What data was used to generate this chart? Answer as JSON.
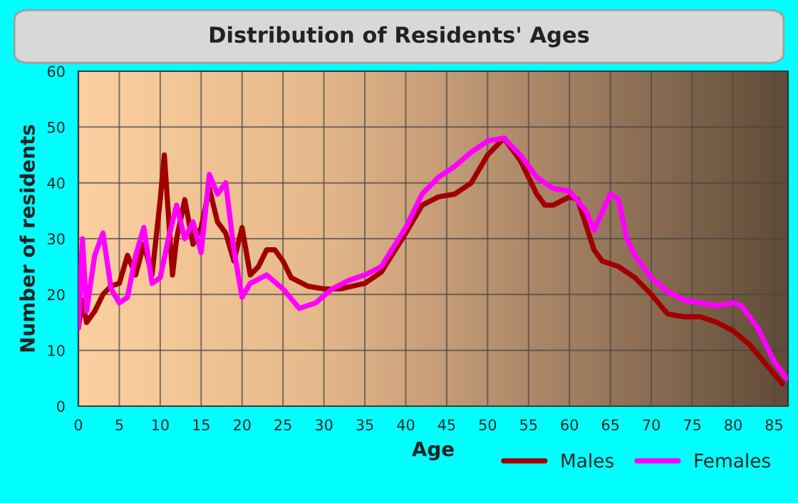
{
  "chart_data": {
    "type": "line",
    "title": "Distribution of Residents' Ages",
    "xlabel": "Age",
    "ylabel": "Number of residents",
    "xlim": [
      0,
      86.7
    ],
    "xticks": [
      0,
      5,
      10,
      15,
      20,
      25,
      30,
      35,
      40,
      45,
      50,
      55,
      60,
      65,
      70,
      75,
      80,
      85
    ],
    "ylim": [
      0,
      60
    ],
    "yticks": [
      0,
      10,
      20,
      30,
      40,
      50,
      60
    ],
    "grid": true,
    "legend": "bottom right",
    "marker": "none",
    "line_style": "solid",
    "series": [
      {
        "name": "Males",
        "color": "#a00000",
        "x": [
          0,
          0.5,
          1,
          2,
          3,
          4,
          5,
          6,
          7,
          8,
          9,
          10,
          10.5,
          11.5,
          12,
          13,
          14,
          15,
          16,
          17,
          18,
          19,
          20,
          21,
          22,
          23,
          24,
          25,
          26,
          28,
          30,
          32,
          35,
          37,
          40,
          42,
          44,
          46,
          48,
          50,
          52,
          54,
          56,
          57,
          58,
          60,
          61,
          63,
          64,
          66,
          68,
          70,
          72,
          74,
          76,
          78,
          80,
          82,
          84,
          86
        ],
        "values": [
          14,
          19,
          15,
          17,
          20,
          21.5,
          22,
          27,
          23.5,
          29,
          23.5,
          37,
          45,
          23.5,
          30,
          37,
          29,
          32,
          39,
          33,
          31,
          26,
          32,
          23.5,
          25,
          28,
          28,
          26,
          23,
          21.5,
          21,
          21,
          22,
          24,
          31,
          36,
          37.5,
          38,
          40,
          45,
          48,
          44,
          38,
          36,
          36,
          37.5,
          37,
          28,
          26,
          25,
          23,
          20,
          16.5,
          16,
          16,
          15,
          13.5,
          11,
          7.5,
          4
        ]
      },
      {
        "name": "Females",
        "color": "#ff00ff",
        "x": [
          0,
          0.5,
          1,
          2,
          3,
          4,
          5,
          6,
          7,
          8,
          9,
          10,
          11,
          12,
          13,
          14,
          15,
          16,
          17,
          18,
          19,
          20,
          21,
          23,
          25,
          27,
          29,
          31,
          33,
          35,
          37,
          40,
          42,
          44,
          46,
          48,
          50,
          52,
          54,
          56,
          58,
          60,
          62,
          63,
          65,
          66,
          67,
          68,
          70,
          72,
          74,
          76,
          78,
          80,
          81,
          83,
          85,
          86.5
        ],
        "values": [
          14,
          30,
          17,
          27,
          31,
          21,
          18.5,
          19.5,
          27,
          32,
          22,
          23,
          30,
          36,
          30,
          33,
          27.5,
          41.5,
          38,
          40,
          28,
          19.5,
          22,
          23.5,
          21,
          17.5,
          18.5,
          21,
          22.5,
          23.5,
          25,
          32,
          38,
          41,
          43,
          45.5,
          47.5,
          48,
          45,
          41,
          39,
          38.5,
          35,
          31.5,
          38,
          37,
          30,
          27,
          23,
          20.5,
          19,
          18.5,
          18,
          18.5,
          18,
          14,
          8,
          5
        ]
      }
    ]
  }
}
